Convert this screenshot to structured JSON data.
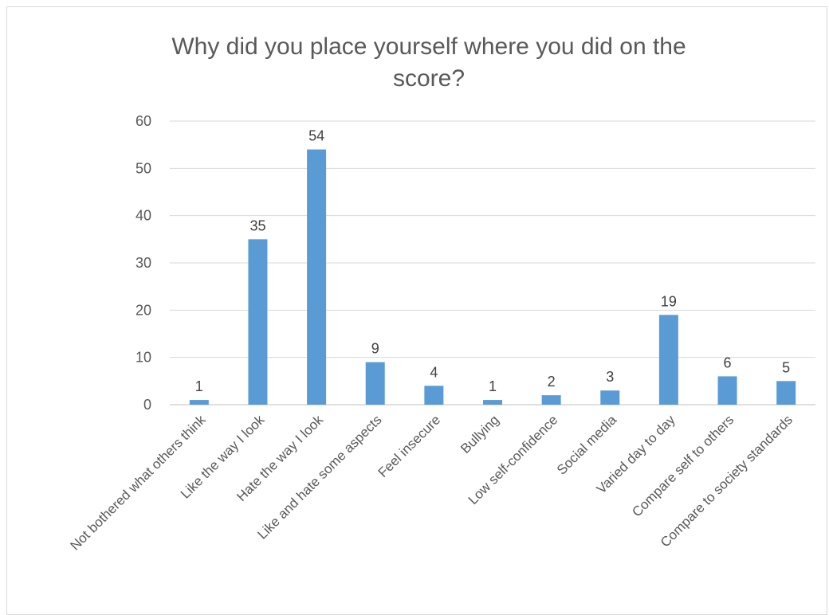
{
  "chart_data": {
    "type": "bar",
    "title_line1": "Why did you place yourself where you did on the",
    "title_line2": "score?",
    "categories": [
      "Not bothered what others think",
      "Like the way I look",
      "Hate the way I look",
      "Like and hate some aspects",
      "Feel insecure",
      "Bullying",
      "Low self-confidence",
      "Social media",
      "Varied day to day",
      "Compare self to others",
      "Compare to society standards"
    ],
    "values": [
      1,
      35,
      54,
      9,
      4,
      1,
      2,
      3,
      19,
      6,
      5
    ],
    "ylim": [
      0,
      60
    ],
    "yticks": [
      0,
      10,
      20,
      30,
      40,
      50,
      60
    ],
    "grid": true,
    "bar_color": "#5b9bd5",
    "grid_color": "#d9d9d9"
  }
}
